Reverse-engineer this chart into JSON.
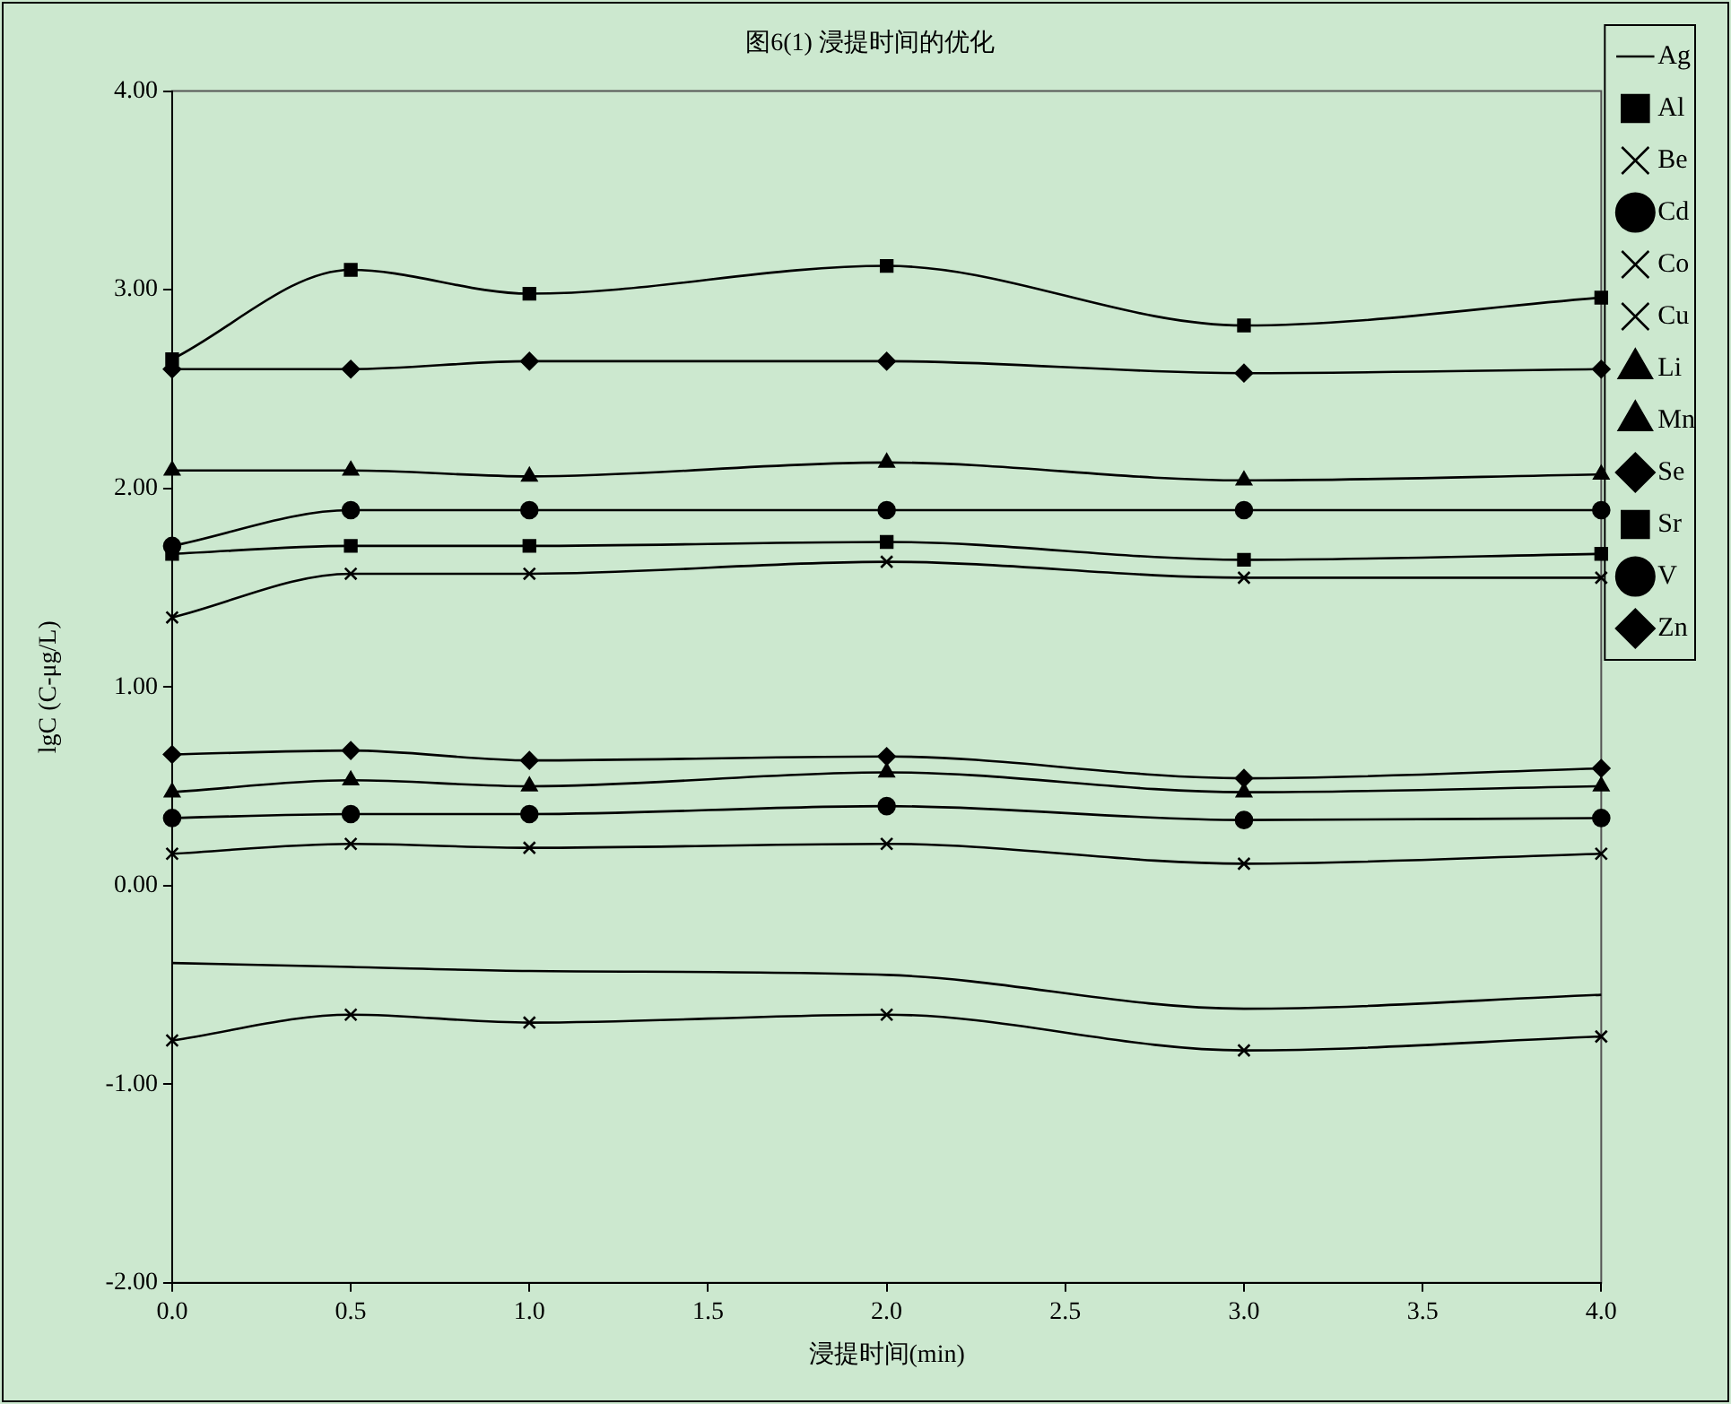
{
  "chart_data": {
    "type": "line",
    "title": "图6(1) 浸提时间的优化",
    "xlabel": "浸提时间(min)",
    "ylabel": "lgC (C-μg/L)",
    "x": [
      0,
      0.5,
      1,
      2,
      3,
      4
    ],
    "xlim": [
      0,
      4
    ],
    "xticks": [
      {
        "value": 0,
        "label": "0.0"
      },
      {
        "value": 0.5,
        "label": "0.5"
      },
      {
        "value": 1,
        "label": "1.0"
      },
      {
        "value": 1.5,
        "label": "1.5"
      },
      {
        "value": 2,
        "label": "2.0"
      },
      {
        "value": 2.5,
        "label": "2.5"
      },
      {
        "value": 3,
        "label": "3.0"
      },
      {
        "value": 3.5,
        "label": "3.5"
      },
      {
        "value": 4,
        "label": "4.0"
      }
    ],
    "ylim": [
      -2,
      4
    ],
    "yticks": [
      {
        "value": -2,
        "label": "-2.00"
      },
      {
        "value": -1,
        "label": "-1.00"
      },
      {
        "value": 0,
        "label": "0.00"
      },
      {
        "value": 1,
        "label": "1.00"
      },
      {
        "value": 2,
        "label": "2.00"
      },
      {
        "value": 3,
        "label": "3.00"
      },
      {
        "value": 4,
        "label": "4.00"
      }
    ],
    "grid": false,
    "legend": "right",
    "line_style": "solid",
    "series": [
      {
        "name": "Ag",
        "color": "#000000",
        "marker": "none",
        "values": [
          -0.39,
          -0.41,
          -0.43,
          -0.45,
          -0.62,
          -0.55
        ]
      },
      {
        "name": "Al",
        "color": "#000000",
        "marker": "square",
        "values": [
          2.65,
          3.1,
          2.98,
          3.12,
          2.82,
          2.96
        ]
      },
      {
        "name": "Be",
        "color": "#000000",
        "marker": "cross",
        "values": [
          -0.78,
          -0.65,
          -0.69,
          -0.65,
          -0.83,
          -0.76
        ]
      },
      {
        "name": "Cd",
        "color": "#000000",
        "marker": "circle",
        "values": [
          0.34,
          0.36,
          0.36,
          0.4,
          0.33,
          0.34
        ]
      },
      {
        "name": "Co",
        "color": "#000000",
        "marker": "cross",
        "values": [
          0.16,
          0.21,
          0.19,
          0.21,
          0.11,
          0.16
        ]
      },
      {
        "name": "Cu",
        "color": "#000000",
        "marker": "cross",
        "values": [
          1.35,
          1.57,
          1.57,
          1.63,
          1.55,
          1.55
        ]
      },
      {
        "name": "Li",
        "color": "#000000",
        "marker": "triangle",
        "values": [
          0.47,
          0.53,
          0.5,
          0.57,
          0.47,
          0.5
        ]
      },
      {
        "name": "Mn",
        "color": "#000000",
        "marker": "triangle",
        "values": [
          2.09,
          2.09,
          2.06,
          2.13,
          2.04,
          2.07
        ]
      },
      {
        "name": "Se",
        "color": "#000000",
        "marker": "diamond",
        "values": [
          0.66,
          0.68,
          0.63,
          0.65,
          0.54,
          0.59
        ]
      },
      {
        "name": "Sr",
        "color": "#000000",
        "marker": "square",
        "values": [
          1.67,
          1.71,
          1.71,
          1.73,
          1.64,
          1.67
        ]
      },
      {
        "name": "V",
        "color": "#000000",
        "marker": "circle",
        "values": [
          1.71,
          1.89,
          1.89,
          1.89,
          1.89,
          1.89
        ]
      },
      {
        "name": "Zn",
        "color": "#000000",
        "marker": "diamond",
        "values": [
          2.6,
          2.6,
          2.64,
          2.64,
          2.58,
          2.6
        ]
      }
    ]
  }
}
